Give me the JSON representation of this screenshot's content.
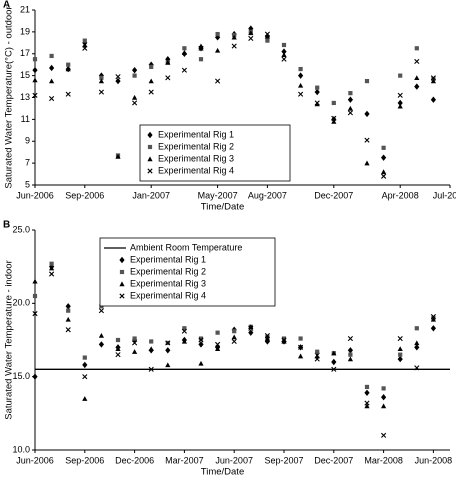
{
  "chart_data": [
    {
      "type": "scatter",
      "panel_label": "A",
      "x_label": "Time/Date",
      "y_label": "Saturated Water Temperature(°C) - outdoor",
      "x": [
        "2006-06",
        "2006-07",
        "2006-08",
        "2006-09",
        "2006-10",
        "2006-11",
        "2006-12",
        "2007-01",
        "2007-02",
        "2007-03",
        "2007-04",
        "2007-05",
        "2007-06",
        "2007-07",
        "2007-08",
        "2007-09",
        "2007-10",
        "2007-11",
        "2007-12",
        "2008-01",
        "2008-02",
        "2008-03",
        "2008-04",
        "2008-05",
        "2008-06"
      ],
      "xlim": [
        "2006-06",
        "2008-07"
      ],
      "xticks": [
        {
          "value": "2006-06",
          "label": "Jun-2006"
        },
        {
          "value": "2006-09",
          "label": "Sep-2006"
        },
        {
          "value": "2007-01",
          "label": "Jan-2007"
        },
        {
          "value": "2007-05",
          "label": "May-2007"
        },
        {
          "value": "2007-08",
          "label": "Aug-2007"
        },
        {
          "value": "2007-12",
          "label": "Dec-2007"
        },
        {
          "value": "2008-04",
          "label": "Apr-2008"
        },
        {
          "value": "2008-07",
          "label": "Jul-2008"
        }
      ],
      "ylim": [
        5,
        21
      ],
      "yticks": [
        5,
        7,
        9,
        11,
        13,
        15,
        17,
        19,
        21
      ],
      "legend": "lower center",
      "series": [
        {
          "name": "Experimental Rig 1",
          "marker": "diamond",
          "color": "#000000",
          "values": [
            15.5,
            15.7,
            15.6,
            18,
            15,
            14.5,
            15.5,
            16,
            16.5,
            17,
            17.5,
            18.5,
            18.8,
            19.3,
            18.6,
            17.2,
            15,
            13.5,
            11,
            12.8,
            11.5,
            7.5,
            12.5,
            14,
            12.8
          ]
        },
        {
          "name": "Experimental Rig 2",
          "marker": "square",
          "color": "#555555",
          "values": [
            16.5,
            16.8,
            16,
            18.2,
            14.8,
            7.7,
            15,
            15.8,
            16.2,
            17.5,
            16.5,
            18.8,
            18.7,
            19,
            18.2,
            17.8,
            15.6,
            13.9,
            12.5,
            13.4,
            14.5,
            8.4,
            15,
            17.5,
            14.7
          ]
        },
        {
          "name": "Experimental Rig 3",
          "marker": "triangle",
          "color": "#000000",
          "values": [
            14.6,
            14.5,
            15.6,
            17.8,
            14.5,
            7.6,
            13,
            14.5,
            16.2,
            17.1,
            17.7,
            17.3,
            18.5,
            18.9,
            18.6,
            16.9,
            14.1,
            12.4,
            10.8,
            12,
            7,
            6.2,
            12.2,
            14.8,
            14.5
          ]
        },
        {
          "name": "Experimental Rig 4",
          "marker": "x",
          "color": "#000000",
          "values": [
            13.2,
            12.9,
            13.3,
            17.5,
            13.5,
            14.9,
            12.5,
            13.5,
            14.8,
            15.5,
            17.5,
            14.5,
            17.7,
            18.4,
            18.8,
            16.5,
            13.3,
            12.5,
            11.1,
            11.6,
            9.1,
            5.8,
            13.2,
            16.3,
            14.8
          ]
        }
      ]
    },
    {
      "type": "scatter",
      "panel_label": "B",
      "x_label": "Time/Date",
      "y_label": "Saturated Water Temperature - indoor",
      "x": [
        "2006-06",
        "2006-07",
        "2006-08",
        "2006-09",
        "2006-10",
        "2006-11",
        "2006-12",
        "2007-01",
        "2007-02",
        "2007-03",
        "2007-04",
        "2007-05",
        "2007-06",
        "2007-07",
        "2007-08",
        "2007-09",
        "2007-10",
        "2007-11",
        "2007-12",
        "2008-01",
        "2008-02",
        "2008-03",
        "2008-04",
        "2008-05",
        "2008-06"
      ],
      "xlim": [
        "2006-06",
        "2008-07"
      ],
      "xticks": [
        {
          "value": "2006-06",
          "label": "Jun-2006"
        },
        {
          "value": "2006-09",
          "label": "Sep-2006"
        },
        {
          "value": "2006-12",
          "label": "Dec-2006"
        },
        {
          "value": "2007-03",
          "label": "Mar-2007"
        },
        {
          "value": "2007-06",
          "label": "Jun-2007"
        },
        {
          "value": "2007-09",
          "label": "Sep-2007"
        },
        {
          "value": "2007-12",
          "label": "Dec-2007"
        },
        {
          "value": "2008-03",
          "label": "Mar-2008"
        },
        {
          "value": "2008-06",
          "label": "Jun-2008"
        }
      ],
      "ylim": [
        10,
        25
      ],
      "yticks": [
        {
          "value": 10,
          "label": "10.0"
        },
        {
          "value": 15,
          "label": "15.0"
        },
        {
          "value": 20,
          "label": "20.0"
        },
        {
          "value": 25,
          "label": "25.0"
        }
      ],
      "legend": "upper left",
      "reference_line": {
        "name": "Ambient Room Temperature",
        "value": 15.5
      },
      "series": [
        {
          "name": "Experimental Rig 1",
          "marker": "diamond",
          "color": "#000000",
          "values": [
            15,
            22.5,
            19.8,
            15.8,
            17.2,
            17,
            17.5,
            16.8,
            16.8,
            17.5,
            17.2,
            17,
            18.2,
            18,
            17.4,
            17.4,
            17,
            16.6,
            16,
            16.8,
            13.9,
            13.6,
            16.2,
            17,
            18.3
          ]
        },
        {
          "name": "Experimental Rig 2",
          "marker": "square",
          "color": "#555555",
          "values": [
            20.5,
            22.7,
            19.5,
            16.3,
            19.8,
            17.5,
            17.6,
            17.4,
            17.3,
            18.3,
            17.6,
            18,
            18.1,
            18.4,
            17.7,
            17.6,
            17.6,
            16.7,
            16.6,
            16.5,
            14.3,
            14.2,
            16.5,
            18.3,
            19
          ]
        },
        {
          "name": "Experimental Rig 3",
          "marker": "triangle",
          "color": "#000000",
          "values": [
            21.5,
            22.4,
            18.9,
            13.5,
            17.8,
            16.9,
            16.7,
            16.9,
            15.8,
            17.4,
            15.9,
            16.9,
            17.7,
            18.4,
            17.6,
            17.4,
            16.4,
            16.4,
            16.6,
            16.2,
            13,
            13,
            16.9,
            17.3,
            18.9
          ]
        },
        {
          "name": "Experimental Rig 4",
          "marker": "x",
          "color": "#000000",
          "values": [
            19.3,
            22,
            18.2,
            15,
            19.5,
            16.5,
            17.3,
            15.5,
            17.3,
            18.1,
            17.5,
            17.2,
            17.4,
            18.3,
            17.8,
            17.5,
            17,
            16.2,
            15.5,
            17.6,
            13.2,
            11,
            17.6,
            15.6,
            19.1
          ]
        }
      ]
    }
  ]
}
